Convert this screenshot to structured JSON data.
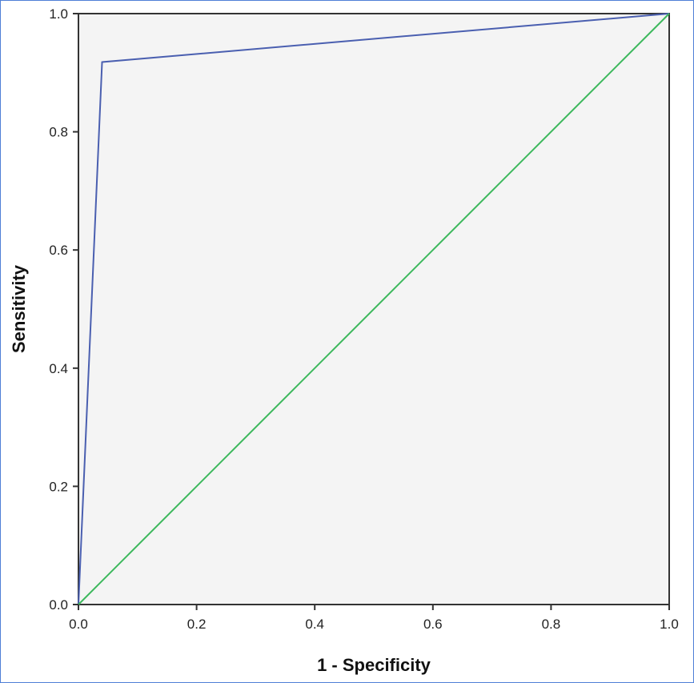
{
  "chart_data": {
    "type": "line",
    "title": "",
    "xlabel": "1 - Specificity",
    "ylabel": "Sensitivity",
    "xlim": [
      0,
      1
    ],
    "ylim": [
      0,
      1
    ],
    "x_ticks": [
      "0.0",
      "0.2",
      "0.4",
      "0.6",
      "0.8",
      "1.0"
    ],
    "y_ticks": [
      "0.0",
      "0.2",
      "0.4",
      "0.6",
      "0.8",
      "1.0"
    ],
    "grid": false,
    "plot_background": "#f4f4f4",
    "series": [
      {
        "color": "#4a5fb0",
        "points": [
          [
            0.0,
            0.0
          ],
          [
            0.04,
            0.918
          ],
          [
            1.0,
            1.0
          ]
        ]
      },
      {
        "color": "#3cb85c",
        "points": [
          [
            0.0,
            0.0
          ],
          [
            1.0,
            1.0
          ]
        ]
      }
    ]
  }
}
